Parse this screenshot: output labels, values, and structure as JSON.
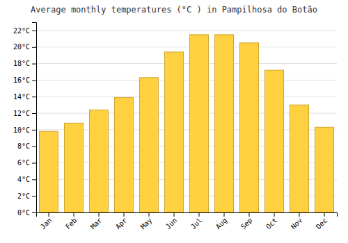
{
  "chart_data": {
    "type": "bar",
    "title": "Average monthly temperatures (°C ) in Pampilhosa do Botão",
    "categories": [
      "Jan",
      "Feb",
      "Mar",
      "Apr",
      "May",
      "Jun",
      "Jul",
      "Aug",
      "Sep",
      "Oct",
      "Nov",
      "Dec"
    ],
    "values": [
      9.8,
      10.8,
      12.4,
      13.9,
      16.3,
      19.4,
      21.5,
      21.5,
      20.5,
      17.2,
      13.0,
      10.3
    ],
    "color": "#FFD040",
    "ylim": [
      0,
      23
    ],
    "yticks": [
      {
        "value": 0,
        "label": "0°C"
      },
      {
        "value": 2,
        "label": "2°C"
      },
      {
        "value": 4,
        "label": "4°C"
      },
      {
        "value": 6,
        "label": "6°C"
      },
      {
        "value": 8,
        "label": "8°C"
      },
      {
        "value": 10,
        "label": "10°C"
      },
      {
        "value": 12,
        "label": "12°C"
      },
      {
        "value": 14,
        "label": "14°C"
      },
      {
        "value": 16,
        "label": "16°C"
      },
      {
        "value": 18,
        "label": "18°C"
      },
      {
        "value": 20,
        "label": "20°C"
      },
      {
        "value": 22,
        "label": "22°C"
      }
    ],
    "grid": true
  }
}
